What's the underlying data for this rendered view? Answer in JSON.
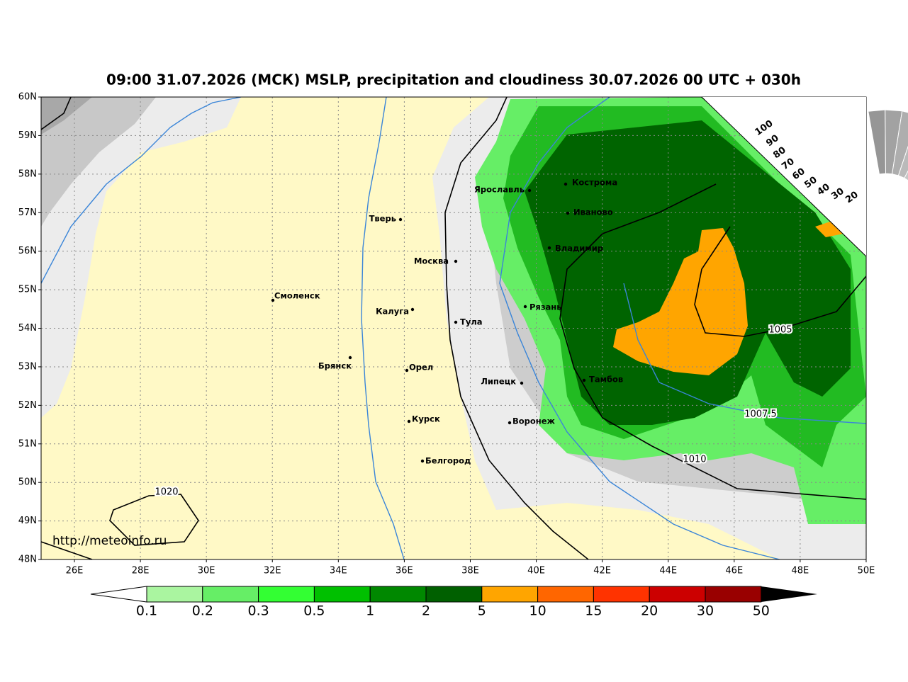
{
  "title": "09:00 31.07.2026 (МСК) MSLP, precipitation and cloudiness 30.07.2026 00 UTC + 030h",
  "lat_labels": [
    "60N",
    "59N",
    "58N",
    "57N",
    "56N",
    "55N",
    "54N",
    "53N",
    "52N",
    "51N",
    "50N",
    "49N",
    "48N"
  ],
  "lon_labels": [
    "26E",
    "28E",
    "30E",
    "32E",
    "34E",
    "36E",
    "38E",
    "40E",
    "42E",
    "44E",
    "46E",
    "48E",
    "50E"
  ],
  "cities": [
    "Ярославль",
    "Кострома",
    "Иваново",
    "Владимир",
    "Тверь",
    "Москва",
    "Смоленск",
    "Калуга",
    "Тула",
    "Рязань",
    "Брянск",
    "Орел",
    "Липецк",
    "Тамбов",
    "Курск",
    "Воронеж",
    "Белгород"
  ],
  "isobar_labels": [
    "1020",
    "1005",
    "1007.5",
    "1010"
  ],
  "colorbar_labels": [
    "0.1",
    "0.2",
    "0.3",
    "0.5",
    "1",
    "2",
    "5",
    "10",
    "15",
    "20",
    "30",
    "50"
  ],
  "cloudiness_labels": [
    "100",
    "90",
    "80",
    "70",
    "60",
    "50",
    "40",
    "30",
    "20"
  ],
  "url": "http://meteoinfo.ru"
}
